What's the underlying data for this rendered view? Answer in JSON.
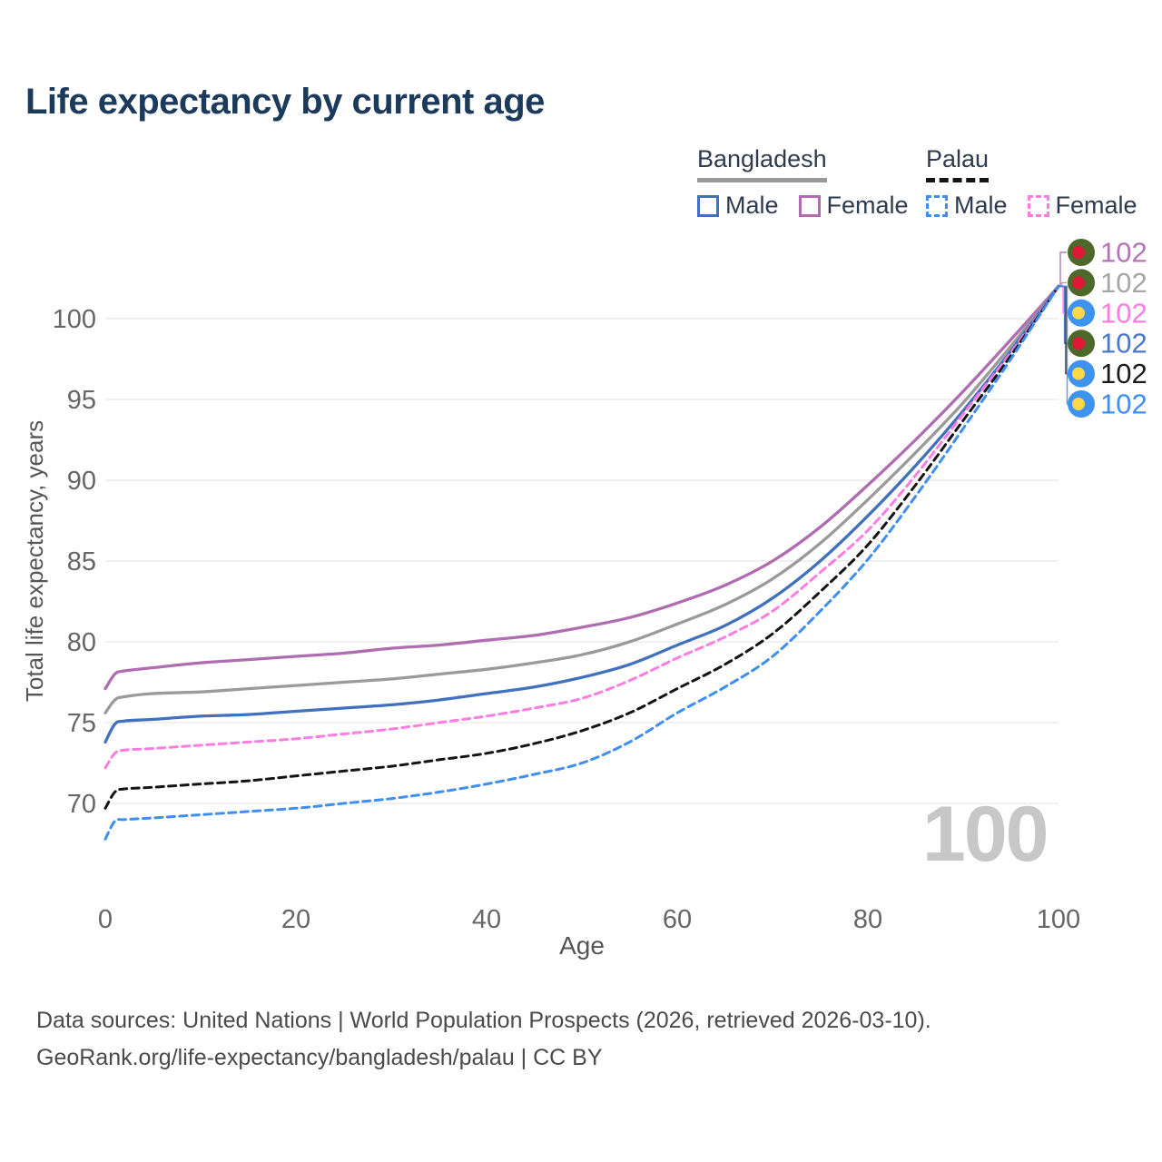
{
  "title": "Life expectancy by current age",
  "watermark": "100",
  "footer": {
    "line1": "Data sources: United Nations | World Population Prospects (2026, retrieved 2026-03-10).",
    "line2": "GeoRank.org/life-expectancy/bangladesh/palau | CC BY"
  },
  "legend": {
    "groups": [
      {
        "name": "Bangladesh",
        "line_style": "solid",
        "underline_color": "#999999",
        "items": [
          {
            "label": "Male",
            "color": "#4170bd",
            "dashed": false
          },
          {
            "label": "Female",
            "color": "#b06cb1",
            "dashed": false
          }
        ]
      },
      {
        "name": "Palau",
        "line_style": "dashed",
        "underline_color": "#141414",
        "items": [
          {
            "label": "Male",
            "color": "#3f8ef2",
            "dashed": true
          },
          {
            "label": "Female",
            "color": "#ff7ce0",
            "dashed": true
          }
        ]
      }
    ]
  },
  "chart_data": {
    "type": "line",
    "title": "Life expectancy by current age",
    "xlabel": "Age",
    "ylabel": "Total life expectancy, years",
    "x_ticks": [
      0,
      20,
      40,
      60,
      80,
      100
    ],
    "y_ticks": [
      70,
      75,
      80,
      85,
      90,
      95,
      100
    ],
    "xlim": [
      0,
      100
    ],
    "ylim": [
      70,
      100
    ],
    "grid": "horizontal",
    "legend_position": "top-right",
    "x": [
      0,
      1,
      2,
      5,
      10,
      15,
      20,
      25,
      30,
      35,
      40,
      45,
      50,
      55,
      60,
      65,
      70,
      75,
      80,
      85,
      90,
      95,
      100
    ],
    "series": [
      {
        "name": "Bangladesh Female",
        "country": "Bangladesh",
        "sex": "Female",
        "color": "#b06cb1",
        "dashed": false,
        "flag": "bangladesh",
        "end_label": "102",
        "end_label_color": "#b573b5",
        "label_row": 0,
        "values": [
          77.1,
          78.0,
          78.2,
          78.4,
          78.7,
          78.9,
          79.1,
          79.3,
          79.6,
          79.8,
          80.1,
          80.4,
          80.9,
          81.5,
          82.4,
          83.5,
          85.0,
          87.1,
          89.7,
          92.5,
          95.5,
          98.7,
          102
        ]
      },
      {
        "name": "Bangladesh",
        "country": "Bangladesh",
        "sex": "Both",
        "color": "#9a9a9a",
        "dashed": false,
        "flag": "bangladesh",
        "end_label": "102",
        "end_label_color": "#a6a6a6",
        "label_row": 1,
        "values": [
          75.6,
          76.4,
          76.6,
          76.8,
          76.9,
          77.1,
          77.3,
          77.5,
          77.7,
          78.0,
          78.3,
          78.7,
          79.2,
          80.0,
          81.1,
          82.3,
          83.9,
          86.1,
          88.8,
          91.7,
          94.8,
          98.3,
          102
        ]
      },
      {
        "name": "Bangladesh Male",
        "country": "Bangladesh",
        "sex": "Male",
        "color": "#4170bd",
        "dashed": false,
        "flag": "bangladesh",
        "end_label": "102",
        "end_label_color": "#4a77c9",
        "label_row": 3,
        "values": [
          73.8,
          74.9,
          75.1,
          75.2,
          75.4,
          75.5,
          75.7,
          75.9,
          76.1,
          76.4,
          76.8,
          77.2,
          77.8,
          78.6,
          79.8,
          81.0,
          82.7,
          85.0,
          87.8,
          90.9,
          94.3,
          98.0,
          102
        ]
      },
      {
        "name": "Palau Female",
        "country": "Palau",
        "sex": "Female",
        "color": "#ff7ce0",
        "dashed": true,
        "flag": "palau",
        "end_label": "102",
        "end_label_color": "#ff7ce0",
        "label_row": 2,
        "values": [
          72.2,
          73.1,
          73.3,
          73.4,
          73.6,
          73.8,
          74.0,
          74.3,
          74.6,
          75.0,
          75.4,
          75.9,
          76.5,
          77.6,
          79.0,
          80.3,
          81.9,
          84.3,
          86.9,
          90.3,
          94.1,
          97.9,
          102
        ]
      },
      {
        "name": "Palau",
        "country": "Palau",
        "sex": "Both",
        "color": "#141414",
        "dashed": true,
        "flag": "palau",
        "end_label": "102",
        "end_label_color": "#1a1a1a",
        "label_row": 4,
        "values": [
          69.7,
          70.7,
          70.9,
          71.0,
          71.2,
          71.4,
          71.7,
          72.0,
          72.3,
          72.7,
          73.1,
          73.7,
          74.5,
          75.6,
          77.1,
          78.6,
          80.5,
          83.1,
          86.0,
          89.7,
          93.7,
          97.7,
          102
        ]
      },
      {
        "name": "Palau Male",
        "country": "Palau",
        "sex": "Male",
        "color": "#3f8ef2",
        "dashed": true,
        "flag": "palau",
        "end_label": "102",
        "end_label_color": "#3f8ef2",
        "label_row": 5,
        "values": [
          67.8,
          68.9,
          69.0,
          69.1,
          69.3,
          69.5,
          69.7,
          70.0,
          70.3,
          70.7,
          71.2,
          71.8,
          72.5,
          73.8,
          75.6,
          77.2,
          79.1,
          81.9,
          85.1,
          89.0,
          93.2,
          97.5,
          102
        ]
      }
    ],
    "flag_colors": {
      "bangladesh": {
        "bg": "#4e682c",
        "dot": "#dd1935"
      },
      "palau": {
        "bg": "#3e92f0",
        "dot": "#ffd84a"
      }
    }
  }
}
